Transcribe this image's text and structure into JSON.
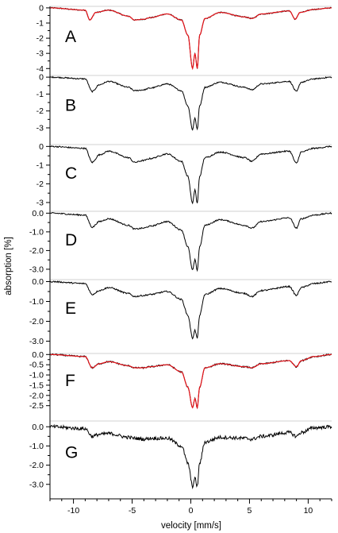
{
  "colors": {
    "data": "#000000",
    "fit": "#e8141a",
    "axis": "#000000"
  },
  "chart_data": {
    "type": "line",
    "xlabel": "velocity [mm/s]",
    "ylabel": "absorption [%]",
    "xlim": [
      -12,
      12
    ],
    "x_ticks": [
      -10,
      -5,
      0,
      5,
      10
    ],
    "x_tick_labels": [
      "-10",
      "-5",
      "0",
      "5",
      "10"
    ],
    "grid": false,
    "legend": "none",
    "panels": [
      {
        "label": "A",
        "ylim": [
          -4.3,
          0.1
        ],
        "y_ticks": [
          0,
          -1,
          -2,
          -3,
          -4
        ],
        "y_tick_labels": [
          "0",
          "-1",
          "-2",
          "-3",
          "-4"
        ],
        "has_fit": true,
        "series": [
          {
            "x": [
              -12,
              -9.0,
              -8.6,
              -8.1,
              -7.0,
              -5.3,
              -4.8,
              -4.0,
              -3.5,
              -2.0,
              -0.8,
              -0.25,
              0.15,
              0.35,
              0.55,
              0.75,
              1.2,
              2.5,
              4.6,
              5.2,
              6.0,
              8.4,
              8.9,
              9.3,
              10.5,
              12
            ],
            "y": [
              0,
              -0.15,
              -0.8,
              -0.3,
              -0.15,
              -0.55,
              -0.8,
              -0.75,
              -0.65,
              -0.4,
              -0.8,
              -1.8,
              -4.0,
              -3.0,
              -4.0,
              -1.8,
              -0.7,
              -0.3,
              -0.6,
              -0.7,
              -0.4,
              -0.2,
              -0.75,
              -0.3,
              -0.1,
              0
            ]
          }
        ]
      },
      {
        "label": "B",
        "ylim": [
          -3.8,
          0.1
        ],
        "y_ticks": [
          0,
          -1,
          -2,
          -3
        ],
        "y_tick_labels": [
          "0",
          "-1",
          "-2",
          "-3"
        ],
        "has_fit": false,
        "series": [
          {
            "x": [
              -12,
              -9.0,
              -8.4,
              -7.8,
              -7.0,
              -5.3,
              -4.8,
              -4.0,
              -3.5,
              -2.0,
              -0.8,
              -0.25,
              0.15,
              0.35,
              0.55,
              0.75,
              1.2,
              2.5,
              4.6,
              5.2,
              6.0,
              8.4,
              9.0,
              9.4,
              10.5,
              12
            ],
            "y": [
              0,
              -0.1,
              -0.85,
              -0.45,
              -0.25,
              -0.6,
              -0.8,
              -0.75,
              -0.65,
              -0.4,
              -0.8,
              -1.7,
              -3.1,
              -2.4,
              -3.1,
              -1.7,
              -0.6,
              -0.3,
              -0.6,
              -0.75,
              -0.4,
              -0.25,
              -0.85,
              -0.3,
              -0.1,
              0
            ]
          }
        ]
      },
      {
        "label": "C",
        "ylim": [
          -3.3,
          0.1
        ],
        "y_ticks": [
          0,
          -1,
          -2,
          -3
        ],
        "y_tick_labels": [
          "0",
          "-1",
          "-2",
          "-3"
        ],
        "has_fit": false,
        "series": [
          {
            "x": [
              -12,
              -9.0,
              -8.4,
              -7.8,
              -7.0,
              -5.3,
              -4.8,
              -4.0,
              -3.5,
              -2.0,
              -0.8,
              -0.25,
              0.15,
              0.35,
              0.55,
              0.75,
              1.2,
              2.5,
              4.6,
              5.2,
              6.0,
              8.4,
              9.0,
              9.4,
              10.5,
              12
            ],
            "y": [
              0,
              -0.1,
              -0.85,
              -0.45,
              -0.25,
              -0.6,
              -0.85,
              -0.75,
              -0.65,
              -0.4,
              -0.8,
              -1.6,
              -3.05,
              -2.3,
              -3.05,
              -1.6,
              -0.6,
              -0.3,
              -0.6,
              -0.8,
              -0.4,
              -0.25,
              -0.9,
              -0.3,
              -0.1,
              0
            ]
          }
        ]
      },
      {
        "label": "D",
        "ylim": [
          -3.3,
          0.1
        ],
        "y_ticks": [
          0,
          -1,
          -2,
          -3
        ],
        "y_tick_labels": [
          "0.0",
          "-1.0",
          "-2.0",
          "-3.0"
        ],
        "has_fit": false,
        "series": [
          {
            "x": [
              -12,
              -9.0,
              -8.4,
              -7.8,
              -7.0,
              -5.3,
              -4.8,
              -4.0,
              -3.5,
              -2.0,
              -0.8,
              -0.25,
              0.15,
              0.35,
              0.55,
              0.75,
              1.2,
              2.5,
              4.6,
              5.2,
              6.0,
              8.4,
              9.0,
              9.4,
              10.5,
              12
            ],
            "y": [
              0,
              -0.1,
              -0.75,
              -0.45,
              -0.3,
              -0.65,
              -0.85,
              -0.8,
              -0.7,
              -0.45,
              -0.9,
              -1.8,
              -3.05,
              -2.5,
              -3.05,
              -1.8,
              -0.65,
              -0.35,
              -0.65,
              -0.8,
              -0.45,
              -0.25,
              -0.8,
              -0.3,
              -0.1,
              0
            ]
          }
        ]
      },
      {
        "label": "E",
        "ylim": [
          -3.1,
          0.1
        ],
        "y_ticks": [
          0,
          -1,
          -2,
          -3
        ],
        "y_tick_labels": [
          "0.0",
          "-1.0",
          "-2.0",
          "-3.0"
        ],
        "has_fit": false,
        "series": [
          {
            "x": [
              -12,
              -9.0,
              -8.4,
              -7.8,
              -7.0,
              -5.3,
              -4.8,
              -4.0,
              -3.5,
              -2.0,
              -0.8,
              -0.25,
              0.15,
              0.35,
              0.55,
              0.75,
              1.2,
              2.5,
              4.6,
              5.2,
              6.0,
              8.4,
              9.0,
              9.4,
              10.5,
              12
            ],
            "y": [
              0,
              -0.1,
              -0.65,
              -0.45,
              -0.3,
              -0.6,
              -0.75,
              -0.7,
              -0.65,
              -0.5,
              -0.9,
              -1.7,
              -2.85,
              -2.45,
              -2.85,
              -1.7,
              -0.65,
              -0.35,
              -0.6,
              -0.75,
              -0.45,
              -0.25,
              -0.7,
              -0.3,
              -0.1,
              0
            ]
          }
        ]
      },
      {
        "label": "F",
        "ylim": [
          -2.9,
          0.05
        ],
        "y_ticks": [
          0,
          -0.5,
          -1,
          -1.5,
          -2,
          -2.5
        ],
        "y_tick_labels": [
          "0.0",
          "-0.5",
          "-1.0",
          "-1.5",
          "-2.0",
          "-2.5"
        ],
        "has_fit": true,
        "series": [
          {
            "x": [
              -12,
              -9.0,
              -8.4,
              -7.8,
              -7.0,
              -5.3,
              -4.8,
              -4.0,
              -3.5,
              -2.0,
              -0.8,
              -0.25,
              0.15,
              0.35,
              0.55,
              0.75,
              1.2,
              2.5,
              4.6,
              5.2,
              6.0,
              8.4,
              9.0,
              9.4,
              10.5,
              12
            ],
            "y": [
              0,
              -0.1,
              -0.65,
              -0.45,
              -0.35,
              -0.55,
              -0.65,
              -0.65,
              -0.6,
              -0.5,
              -0.85,
              -1.6,
              -2.6,
              -2.15,
              -2.6,
              -1.6,
              -0.65,
              -0.45,
              -0.6,
              -0.65,
              -0.45,
              -0.3,
              -0.6,
              -0.3,
              -0.1,
              0
            ]
          }
        ]
      },
      {
        "label": "G",
        "ylim": [
          -3.3,
          0.3
        ],
        "y_ticks": [
          0,
          -1,
          -2,
          -3
        ],
        "y_tick_labels": [
          "0.0",
          "-1.0",
          "-2.0",
          "-3.0"
        ],
        "has_fit": false,
        "series": [
          {
            "x": [
              -12,
              -9.0,
              -8.4,
              -7.8,
              -7.0,
              -5.3,
              -4.8,
              -4.0,
              -3.5,
              -2.0,
              -0.8,
              -0.25,
              0.15,
              0.35,
              0.55,
              0.75,
              1.2,
              2.5,
              4.6,
              5.2,
              6.0,
              8.4,
              9.0,
              9.4,
              10.5,
              12
            ],
            "y": [
              0,
              -0.1,
              -0.5,
              -0.4,
              -0.35,
              -0.55,
              -0.6,
              -0.65,
              -0.6,
              -0.6,
              -1.0,
              -1.9,
              -3.1,
              -2.7,
              -3.1,
              -1.9,
              -0.8,
              -0.55,
              -0.6,
              -0.65,
              -0.5,
              -0.3,
              -0.5,
              -0.3,
              -0.05,
              0
            ]
          }
        ]
      }
    ]
  }
}
